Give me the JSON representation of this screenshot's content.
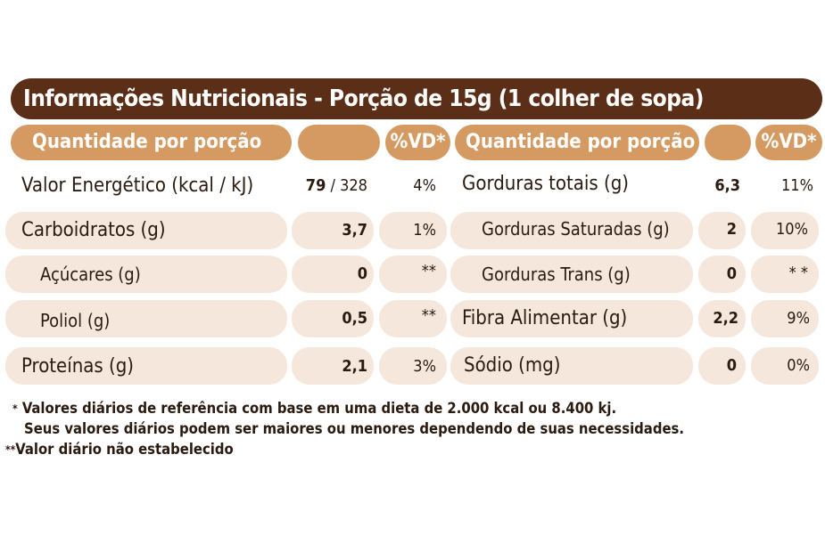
{
  "title": "Informações Nutricionais - Porção de 15g (1 colher de sopa)",
  "header": {
    "left_label": "Quantidade por porção",
    "left_vd": "%VD*",
    "right_label": "Quantidade por porção",
    "right_vd": "%VD*"
  },
  "left_rows": [
    {
      "label": "Valor Energético (kcal / kJ)",
      "value": "79",
      "value_extra": " / 328",
      "vd": "4%"
    },
    {
      "label": "Carboidratos (g)",
      "value": "3,7",
      "value_extra": "",
      "vd": "1%"
    },
    {
      "label": "Açúcares (g)",
      "value": "0",
      "value_extra": "",
      "vd": "**"
    },
    {
      "label": "Poliol (g)",
      "value": "0,5",
      "value_extra": "",
      "vd": "**"
    },
    {
      "label": "Proteínas (g)",
      "value": "2,1",
      "value_extra": "",
      "vd": "3%"
    }
  ],
  "right_rows": [
    {
      "label": "Gorduras totais (g)",
      "value": "6,3",
      "vd": "11%"
    },
    {
      "label": "Gorduras Saturadas (g)",
      "value": "2",
      "vd": "10%"
    },
    {
      "label": "Gorduras Trans (g)",
      "value": "0",
      "vd": "* *"
    },
    {
      "label": "Fibra Alimentar (g)",
      "value": "2,2",
      "vd": "9%"
    },
    {
      "label": "Sódio (mg)",
      "value": "0",
      "vd": "0%"
    }
  ],
  "footnotes": {
    "line1": "Valores diários de referência com base em uma dieta de 2.000 kcal ou 8.400 kj.",
    "line2": "Seus valores diários podem ser maiores ou menores dependendo de suas necessidades.",
    "line3": "Valor diário não estabelecido",
    "mark1": "*",
    "mark2": "**"
  },
  "colors": {
    "title_bg": "#5b2f17",
    "header_bg": "#d49a62",
    "row_bg": "#f5e7db"
  }
}
